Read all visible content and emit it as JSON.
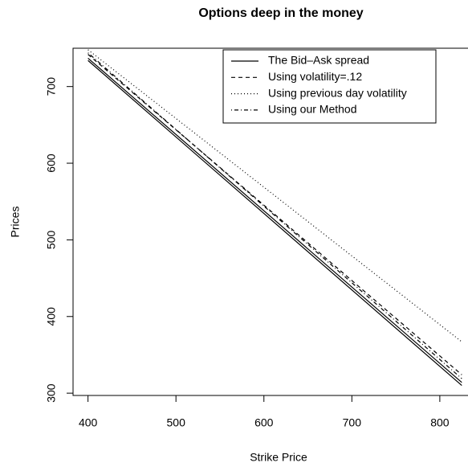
{
  "chart_data": {
    "type": "line",
    "title": "Options deep in the money",
    "xlabel": "Strike Price",
    "ylabel": "Prices",
    "x": [
      400,
      825
    ],
    "series": [
      {
        "name": "The Bid–Ask spread",
        "color": "#000000",
        "dash": "solid",
        "values": [
          734,
          310
        ],
        "upper": [
          737,
          314
        ]
      },
      {
        "name": "Using volatility=.12",
        "color": "#000000",
        "dash": "dashed",
        "values": [
          742,
          324
        ]
      },
      {
        "name": "Using previous day volatility",
        "color": "#000000",
        "dash": "dotted",
        "values": [
          748,
          367
        ]
      },
      {
        "name": "Using our Method",
        "color": "#000000",
        "dash": "dotdash",
        "values": [
          744,
          319
        ]
      }
    ],
    "xlim": [
      383,
      843
    ],
    "ylim": [
      297,
      750
    ],
    "xticks": [
      400,
      500,
      600,
      700,
      800
    ],
    "yticks": [
      300,
      400,
      500,
      600,
      700
    ],
    "legend": "top-right"
  }
}
